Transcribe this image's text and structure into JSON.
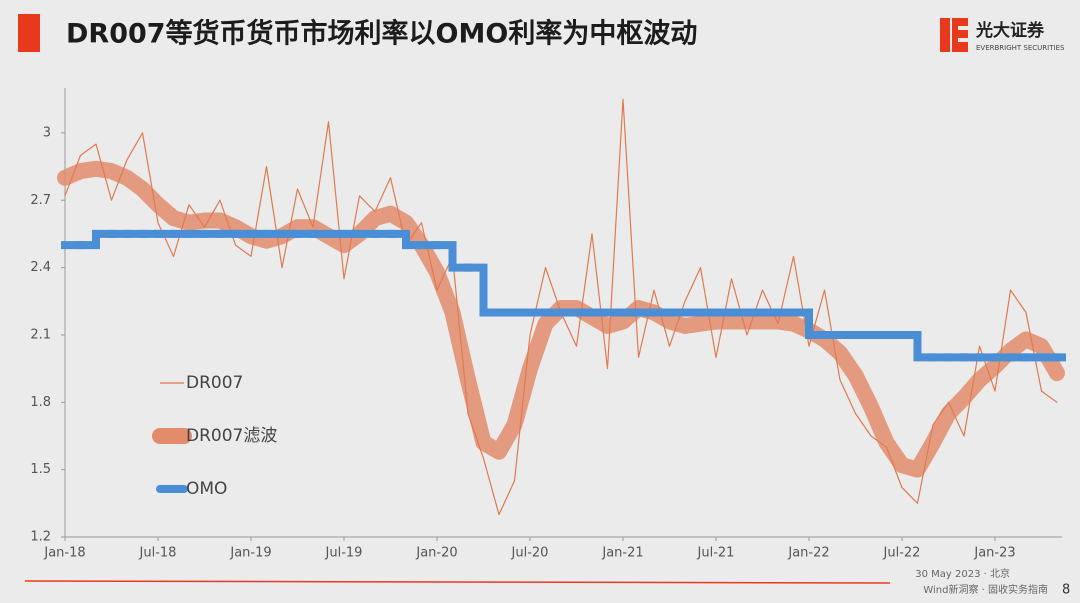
{
  "header": {
    "title": "DR007等货币货币市场利率以OMO利率为中枢波动",
    "logo_name": "光大证券",
    "logo_sub": "EVERBRIGHT SECURITIES"
  },
  "chart_data": {
    "type": "line",
    "x": [
      "2018-01",
      "2018-02",
      "2018-03",
      "2018-04",
      "2018-05",
      "2018-06",
      "2018-07",
      "2018-08",
      "2018-09",
      "2018-10",
      "2018-11",
      "2018-12",
      "2019-01",
      "2019-02",
      "2019-03",
      "2019-04",
      "2019-05",
      "2019-06",
      "2019-07",
      "2019-08",
      "2019-09",
      "2019-10",
      "2019-11",
      "2019-12",
      "2020-01",
      "2020-02",
      "2020-03",
      "2020-04",
      "2020-05",
      "2020-06",
      "2020-07",
      "2020-08",
      "2020-09",
      "2020-10",
      "2020-11",
      "2020-12",
      "2021-01",
      "2021-02",
      "2021-03",
      "2021-04",
      "2021-05",
      "2021-06",
      "2021-07",
      "2021-08",
      "2021-09",
      "2021-10",
      "2021-11",
      "2021-12",
      "2022-01",
      "2022-02",
      "2022-03",
      "2022-04",
      "2022-05",
      "2022-06",
      "2022-07",
      "2022-08",
      "2022-09",
      "2022-10",
      "2022-11",
      "2022-12",
      "2023-01",
      "2023-02",
      "2023-03",
      "2023-04",
      "2023-05"
    ],
    "series": [
      {
        "name": "DR007",
        "color": "#e07a50",
        "width": 1.2,
        "values": [
          2.72,
          2.9,
          2.95,
          2.7,
          2.88,
          3.0,
          2.6,
          2.45,
          2.68,
          2.58,
          2.7,
          2.5,
          2.45,
          2.85,
          2.4,
          2.75,
          2.58,
          3.05,
          2.35,
          2.72,
          2.65,
          2.8,
          2.5,
          2.6,
          2.3,
          2.45,
          1.75,
          1.55,
          1.3,
          1.45,
          2.1,
          2.4,
          2.2,
          2.05,
          2.55,
          1.95,
          3.15,
          2.0,
          2.3,
          2.05,
          2.25,
          2.4,
          2.0,
          2.35,
          2.1,
          2.3,
          2.15,
          2.45,
          2.05,
          2.3,
          1.9,
          1.75,
          1.65,
          1.6,
          1.42,
          1.35,
          1.7,
          1.8,
          1.65,
          2.05,
          1.85,
          2.3,
          2.2,
          1.85,
          1.8
        ]
      },
      {
        "name": "DR007滤波",
        "color": "#e38c6c",
        "width": 16,
        "values": [
          2.8,
          2.83,
          2.84,
          2.83,
          2.8,
          2.75,
          2.68,
          2.62,
          2.6,
          2.61,
          2.61,
          2.58,
          2.54,
          2.52,
          2.54,
          2.58,
          2.58,
          2.54,
          2.5,
          2.55,
          2.62,
          2.64,
          2.6,
          2.5,
          2.38,
          2.2,
          1.9,
          1.62,
          1.58,
          1.7,
          1.95,
          2.15,
          2.22,
          2.22,
          2.18,
          2.14,
          2.16,
          2.22,
          2.2,
          2.16,
          2.14,
          2.15,
          2.16,
          2.16,
          2.16,
          2.16,
          2.16,
          2.15,
          2.12,
          2.08,
          2.02,
          1.92,
          1.78,
          1.62,
          1.52,
          1.5,
          1.62,
          1.75,
          1.82,
          1.9,
          1.96,
          2.03,
          2.08,
          2.05,
          1.93
        ]
      },
      {
        "name": "OMO",
        "color": "#4a8ed6",
        "width": 8,
        "drawstyle": "steps-post",
        "values": [
          2.5,
          2.5,
          2.55,
          2.55,
          2.55,
          2.55,
          2.55,
          2.55,
          2.55,
          2.55,
          2.55,
          2.55,
          2.55,
          2.55,
          2.55,
          2.55,
          2.55,
          2.55,
          2.55,
          2.55,
          2.55,
          2.55,
          2.5,
          2.5,
          2.5,
          2.4,
          2.4,
          2.2,
          2.2,
          2.2,
          2.2,
          2.2,
          2.2,
          2.2,
          2.2,
          2.2,
          2.2,
          2.2,
          2.2,
          2.2,
          2.2,
          2.2,
          2.2,
          2.2,
          2.2,
          2.2,
          2.2,
          2.2,
          2.1,
          2.1,
          2.1,
          2.1,
          2.1,
          2.1,
          2.1,
          2.0,
          2.0,
          2.0,
          2.0,
          2.0,
          2.0,
          2.0,
          2.0,
          2.0,
          2.0
        ]
      }
    ],
    "xlim": [
      "2018-01",
      "2023-05"
    ],
    "xticks": [
      {
        "value": "2018-01",
        "label": "Jan-18"
      },
      {
        "value": "2018-07",
        "label": "Jul-18"
      },
      {
        "value": "2019-01",
        "label": "Jan-19"
      },
      {
        "value": "2019-07",
        "label": "Jul-19"
      },
      {
        "value": "2020-01",
        "label": "Jan-20"
      },
      {
        "value": "2020-07",
        "label": "Jul-20"
      },
      {
        "value": "2021-01",
        "label": "Jan-21"
      },
      {
        "value": "2021-07",
        "label": "Jul-21"
      },
      {
        "value": "2022-01",
        "label": "Jan-22"
      },
      {
        "value": "2022-07",
        "label": "Jul-22"
      },
      {
        "value": "2023-01",
        "label": "Jan-23"
      }
    ],
    "ylim": [
      1.2,
      3.2
    ],
    "yticks": [
      1.2,
      1.5,
      1.8,
      2.1,
      2.4,
      2.7,
      3
    ],
    "grid": false,
    "legend": "lower left"
  },
  "footer": {
    "date": "30 May 2023 · 北京",
    "source": "Wind新洞察 · 固收实务指南",
    "page": "8"
  }
}
